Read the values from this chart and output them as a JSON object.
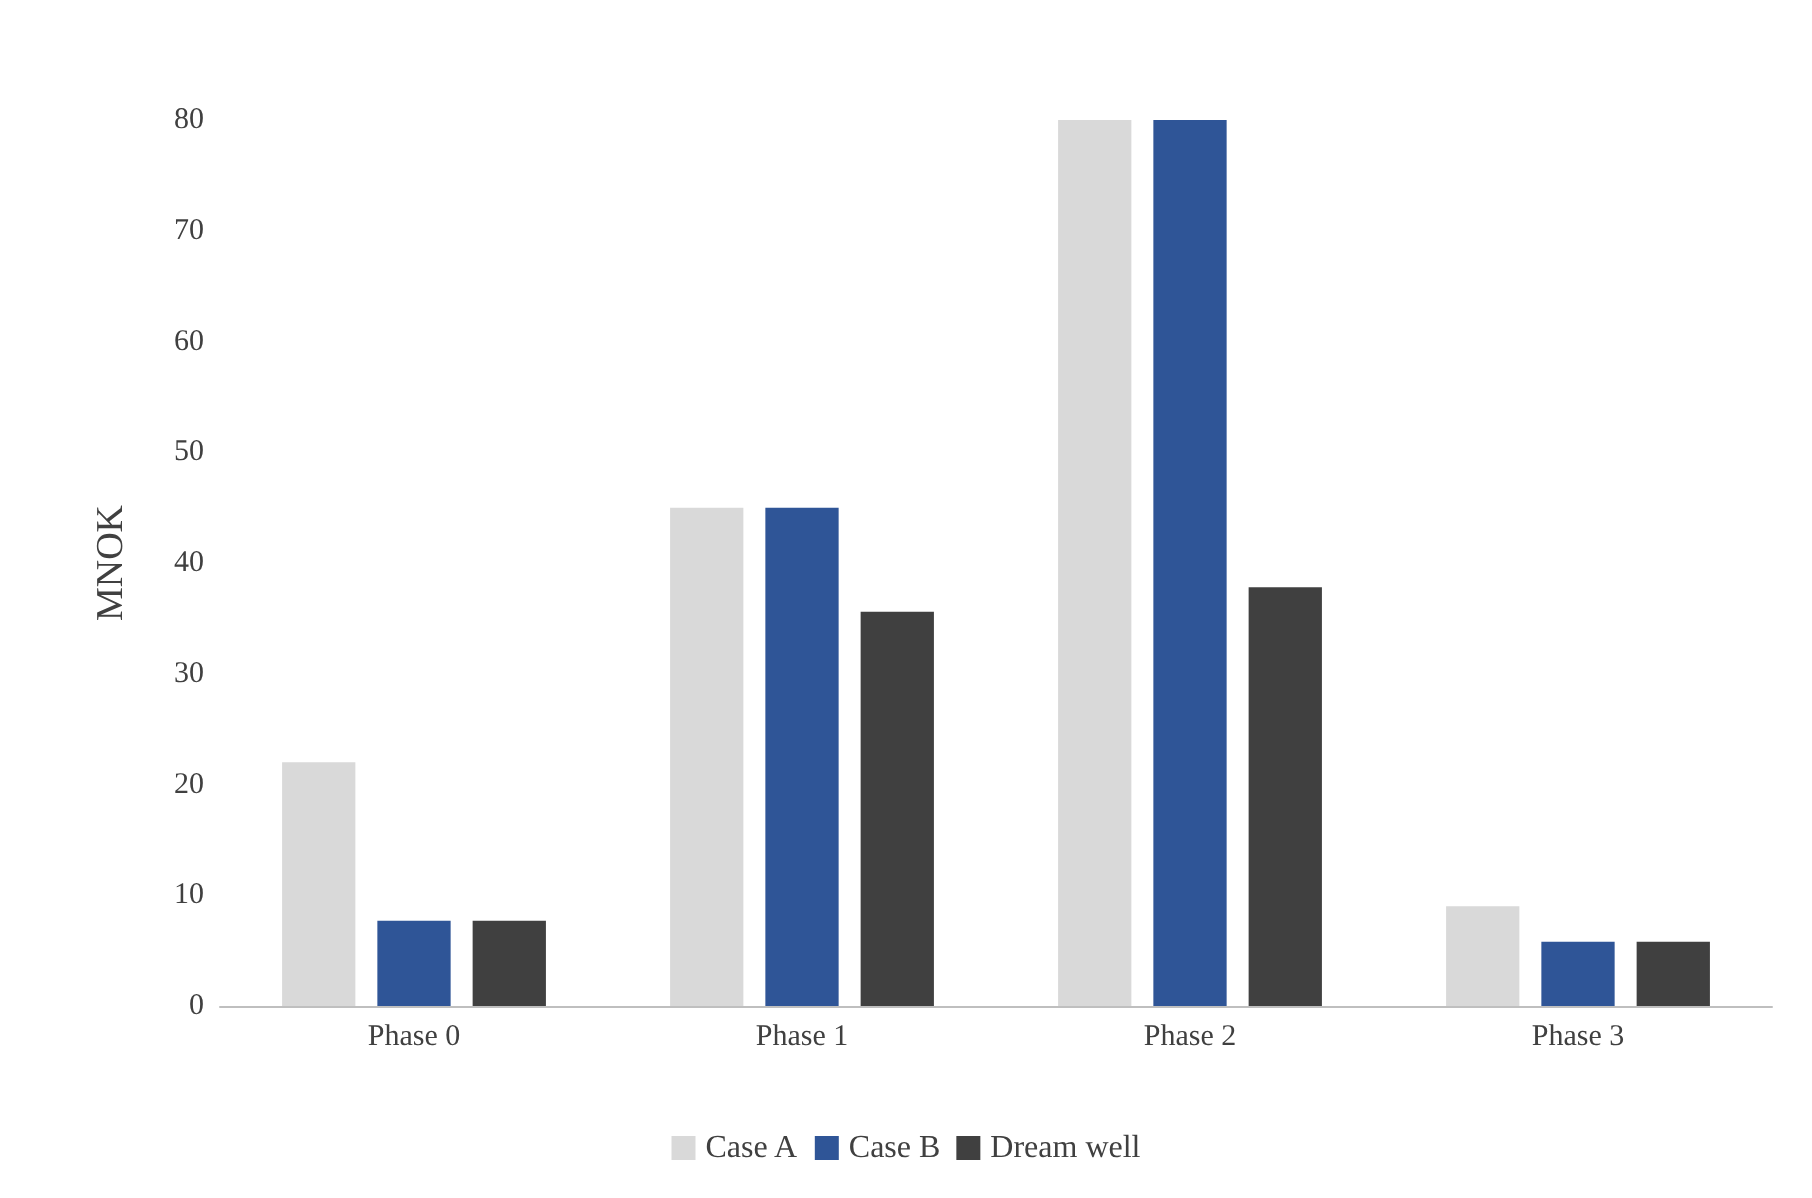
{
  "chart_data": {
    "type": "bar",
    "ylabel": "MNOK",
    "categories": [
      "Phase 0",
      "Phase 1",
      "Phase 2",
      "Phase 3"
    ],
    "series": [
      {
        "name": "Case A",
        "color": "#d9d9d9",
        "values": [
          22,
          45,
          80,
          9
        ]
      },
      {
        "name": "Case B",
        "color": "#2f5597",
        "values": [
          7.7,
          45,
          80,
          5.8
        ]
      },
      {
        "name": "Dream well",
        "color": "#404040",
        "values": [
          7.7,
          35.6,
          37.8,
          5.8
        ]
      }
    ],
    "ylim": [
      0,
      80
    ],
    "yticks": [
      0,
      10,
      20,
      30,
      40,
      50,
      60,
      70,
      80
    ],
    "grid": false,
    "legend": "bottom"
  }
}
